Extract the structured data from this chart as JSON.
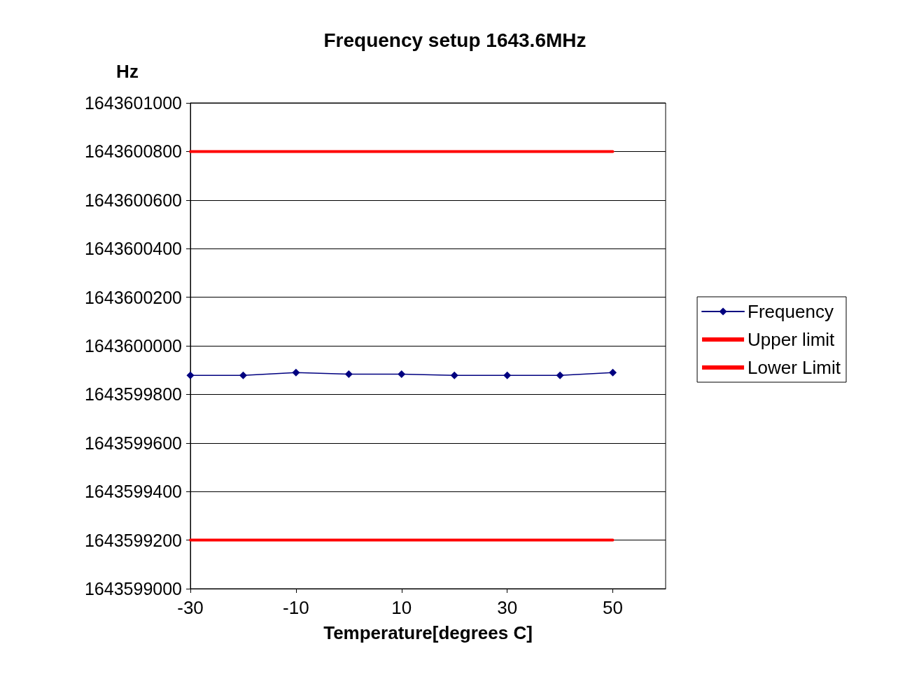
{
  "chart_data": {
    "type": "line",
    "title": "Frequency setup 1643.6MHz",
    "xlabel": "Temperature[degrees C]",
    "ylabel": "Hz",
    "series": [
      {
        "name": "Frequency",
        "color": "#000080",
        "marker": "diamond",
        "x": [
          -30,
          -20,
          -10,
          0,
          10,
          20,
          30,
          40,
          50
        ],
        "values": [
          1643599878,
          1643599878,
          1643599890,
          1643599883,
          1643599883,
          1643599878,
          1643599878,
          1643599878,
          1643599890
        ]
      },
      {
        "name": "Upper limit",
        "color": "#ff0000",
        "marker": "none",
        "x": [
          -30,
          50
        ],
        "values": [
          1643600800,
          1643600800
        ]
      },
      {
        "name": "Lower Limit",
        "color": "#ff0000",
        "marker": "none",
        "x": [
          -30,
          50
        ],
        "values": [
          1643599200,
          1643599200
        ]
      }
    ],
    "xlim": [
      -30,
      60
    ],
    "xticks": [
      -30,
      -10,
      10,
      30,
      50
    ],
    "ylim": [
      1643599000,
      1643601000
    ],
    "yticks": [
      1643599000,
      1643599200,
      1643599400,
      1643599600,
      1643599800,
      1643600000,
      1643600200,
      1643600400,
      1643600600,
      1643600800,
      1643601000
    ],
    "grid": "y",
    "legend": "right",
    "line_style": "solid"
  }
}
